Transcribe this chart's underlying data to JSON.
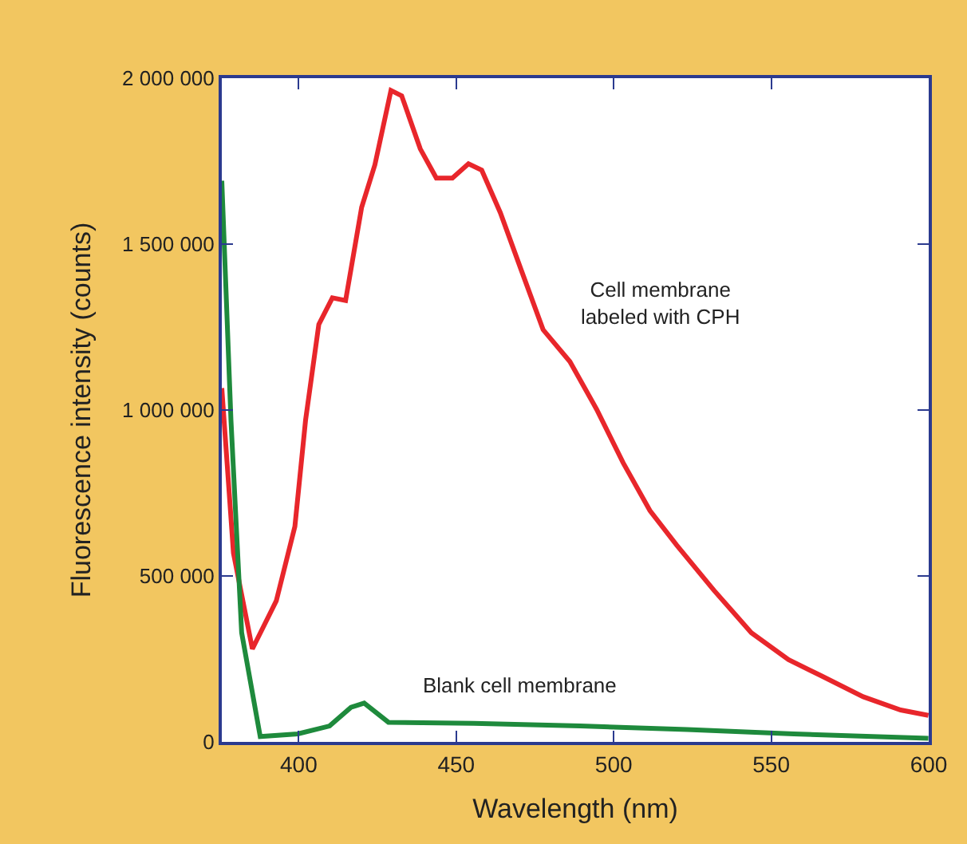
{
  "chart_data": {
    "type": "line",
    "xlabel": "Wavelength (nm)",
    "ylabel": "Fluorescence intensity (counts)",
    "xlim": [
      375.6,
      600
    ],
    "xticks": [
      400,
      450,
      500,
      550,
      600
    ],
    "ylim": [
      0,
      2000000
    ],
    "yticks": [
      {
        "value": 0,
        "label": "0"
      },
      {
        "value": 500000,
        "label": "500 000"
      },
      {
        "value": 1000000,
        "label": "1 000 000"
      },
      {
        "value": 1500000,
        "label": "1 500 000"
      },
      {
        "value": 2000000,
        "label": "2 000 000"
      }
    ],
    "marker": "none",
    "line_style": "solid",
    "series": [
      {
        "color": "#e8262b",
        "x": [
          375.6,
          379.3,
          385.3,
          392.9,
          398.8,
          402.2,
          406.4,
          410.7,
          414.9,
          420.0,
          424.2,
          429.3,
          432.7,
          438.6,
          443.7,
          448.8,
          453.9,
          458.1,
          464.0,
          470.8,
          477.6,
          486.1,
          494.6,
          503.0,
          511.5,
          520.0,
          531.8,
          543.7,
          555.5,
          565.7,
          579.2,
          591.1,
          599.9
        ],
        "values": [
          1066000,
          569000,
          280000,
          425000,
          649000,
          970000,
          1258000,
          1338000,
          1330000,
          1611000,
          1739000,
          1963000,
          1947000,
          1787000,
          1699000,
          1699000,
          1742000,
          1723000,
          1595000,
          1418000,
          1242000,
          1146000,
          1002000,
          841000,
          697000,
          593000,
          457000,
          329000,
          248000,
          200000,
          136000,
          96000,
          80000
        ]
      },
      {
        "color": "#1e8a3c",
        "x": [
          375.6,
          378.5,
          381.9,
          387.8,
          399.7,
          409.8,
          416.6,
          420.8,
          428.5,
          455.6,
          489.4,
          523.3,
          557.2,
          599.9
        ],
        "values": [
          1691000,
          970000,
          329000,
          16000,
          24000,
          48000,
          104000,
          117000,
          59000,
          56000,
          48000,
          37000,
          24000,
          11000
        ]
      }
    ],
    "annotations": [
      "Cell membrane\nlabeled with CPH",
      "Blank cell membrane"
    ]
  }
}
